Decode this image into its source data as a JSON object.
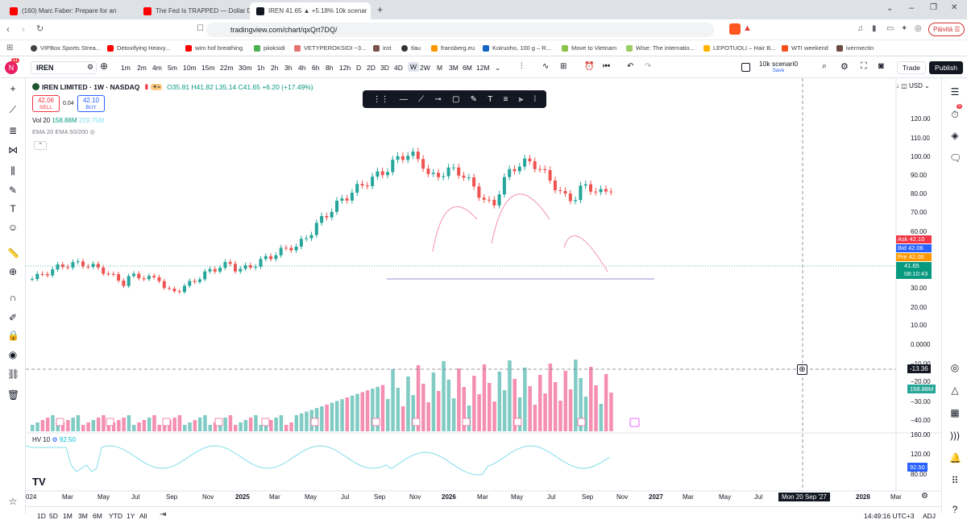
{
  "browser": {
    "tabs": [
      {
        "title": "(160) Marc Faber: Prepare for an"
      },
      {
        "title": "The Fed Is TRAPPED — Dollar Devalu"
      },
      {
        "title": "IREN 41.65 ▲ +5.18% 10k scenar"
      }
    ],
    "url": "tradingview.com/chart/qxQrt7DQ/",
    "profile_label": "Päivitä",
    "bookmarks": [
      "VIPBox Sports Strea...",
      "Detoxifying Heavy...",
      "wim hof breathing",
      "piioksidi",
      "VETYPEROKSIDI ~3...",
      "irot",
      "tlau",
      "fransberg.eu",
      "Koiruoho, 100 g – R...",
      "Move to Vietnam",
      "Wise: The internatio...",
      "LEPOTUOLI – Hair B...",
      "WTI weekend",
      "ivermectin"
    ]
  },
  "toolbar": {
    "symbol": "IREN",
    "avatar_letter": "N",
    "notif_count": "11",
    "timeframes": [
      "1m",
      "2m",
      "4m",
      "5m",
      "10m",
      "15m",
      "22m",
      "30m",
      "1h",
      "2h",
      "3h",
      "4h",
      "6h",
      "8h",
      "12h",
      "D",
      "2D",
      "3D",
      "4D",
      "W",
      "2W",
      "M",
      "3M",
      "6M",
      "12M"
    ],
    "selected_timeframe": "W",
    "layout_name": "10k scenari0",
    "layout_save": "Save",
    "trade_label": "Trade",
    "publish_label": "Publish"
  },
  "legend": {
    "title": "IREN LIMITED · 1W · NASDAQ",
    "ohlc": "O35.81 H41.82 L35.14 C41.65 +6.20 (+17.49%)",
    "sell_price": "42.06",
    "sell_label": "SELL",
    "spread": "0.04",
    "buy_price": "42.10",
    "buy_label": "BUY",
    "vol_label": "Vol 20",
    "vol_value": "158.88M",
    "vol_ma": "229.75M",
    "ema_label": "EMA 20 EMA 50/200",
    "hv_label": "HV 10",
    "hv_value": "92.50"
  },
  "price_axis": {
    "currency": "USD",
    "labels": [
      "120.00",
      "110.00",
      "100.00",
      "90.00",
      "80.00",
      "70.00",
      "60.00",
      "30.00",
      "20.00",
      "10.00",
      "0.0000"
    ],
    "ask_label": "Ask",
    "ask": "42.10",
    "bid_label": "Bid",
    "bid": "42.06",
    "pre_label": "Pre",
    "pre": "42.06",
    "last": "41.65",
    "countdown": "08:10:43",
    "crosshair_value": "-13.36",
    "vol_axis": [
      "−10.00",
      "−20.00",
      "−30.00",
      "−40.00"
    ],
    "vol_badge": "158.88M",
    "hv_axis": [
      "160.00",
      "120.00",
      "80.00"
    ],
    "hv_badge": "92.50"
  },
  "time_axis": {
    "labels": [
      "024",
      "Mar",
      "May",
      "Jul",
      "Sep",
      "Nov",
      "2025",
      "Mar",
      "May",
      "Jul",
      "Sep",
      "Nov",
      "2026",
      "Mar",
      "May",
      "Jul",
      "Sep",
      "Nov",
      "2027",
      "Mar",
      "May",
      "Jul",
      "ov",
      "2028",
      "Mar"
    ],
    "crosshair_date": "Mon 20 Sep '27"
  },
  "bottom_bar": {
    "ranges": [
      "1D",
      "5D",
      "1M",
      "3M",
      "6M",
      "YTD",
      "1Y",
      "All"
    ],
    "clock": "14:49:16 UTC+3",
    "adj": "ADJ"
  },
  "colors": {
    "up": "#26a69a",
    "down": "#ef5350",
    "vol_up": "#80cbc4",
    "vol_down": "#f48fb1",
    "hv": "#80deea",
    "accent": "#2962ff"
  }
}
